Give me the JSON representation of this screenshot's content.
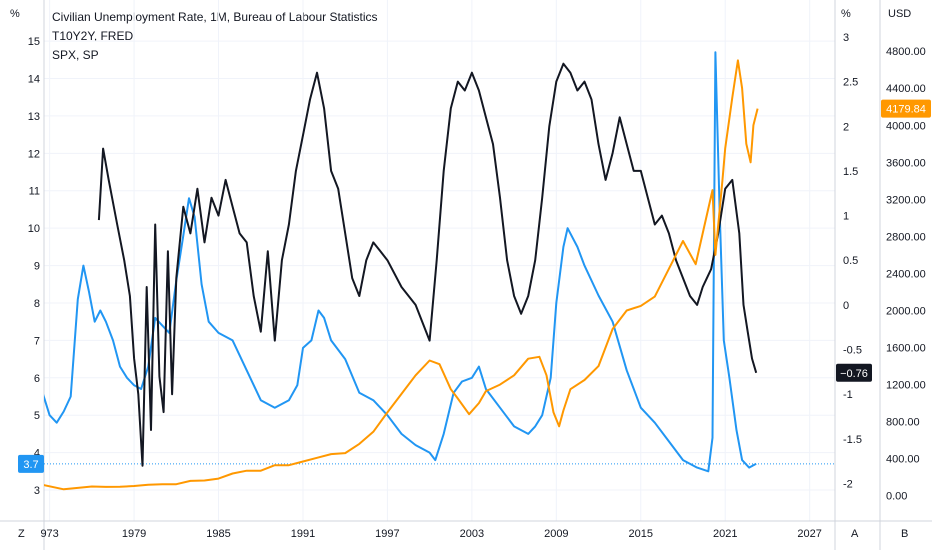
{
  "legend": {
    "series1": "Civilian Unemployment Rate, 1M, Bureau of Labour Statistics",
    "series2": "T10Y2Y, FRED",
    "series3": "SPX, SP"
  },
  "axis_units": {
    "left": "%",
    "middle": "%",
    "right": "USD"
  },
  "corner_buttons": {
    "bottom_left": "Z",
    "bottom_middle": "A",
    "bottom_right": "B"
  },
  "colors": {
    "unemployment": "#2196f3",
    "t10y2y": "#131722",
    "spx": "#ff9800",
    "grid": "#f0f3fa",
    "axis_line": "#d1d4dc"
  },
  "badges": {
    "unemployment_last": "3.7",
    "t10y2y_last": "−0.76",
    "spx_last": "4179.84"
  },
  "chart_data": {
    "type": "line",
    "x_axis": {
      "tick_labels": [
        "973",
        "1979",
        "1985",
        "1991",
        "1997",
        "2003",
        "2009",
        "2015",
        "2021",
        "2027"
      ],
      "range": [
        1972.6,
        2028.8
      ]
    },
    "y_axes": {
      "left": {
        "unit": "%",
        "range": [
          2.6,
          15.35
        ],
        "ticks": [
          3,
          4,
          5,
          6,
          7,
          8,
          9,
          10,
          11,
          12,
          13,
          14,
          15
        ]
      },
      "middle": {
        "unit": "%",
        "range": [
          -2.24,
          3.1
        ],
        "ticks": [
          "-2",
          "-1.5",
          "-1",
          "-0.5",
          "0",
          "0.5",
          "1",
          "1.5",
          "2",
          "2.5",
          "3"
        ]
      },
      "right": {
        "unit": "USD",
        "range": [
          -100,
          5050
        ],
        "ticks": [
          "0.00",
          "400.00",
          "800.00",
          "1200.00",
          "1600.00",
          "2000.00",
          "2400.00",
          "2800.00",
          "3200.00",
          "3600.00",
          "4000.00",
          "4400.00",
          "4800.00"
        ]
      }
    },
    "series": [
      {
        "name": "Civilian Unemployment Rate, 1M, Bureau of Labour Statistics",
        "axis": "left",
        "x": [
          1972.5,
          1973.0,
          1973.5,
          1974.0,
          1974.5,
          1975.0,
          1975.4,
          1975.8,
          1976.2,
          1976.6,
          1977.0,
          1977.5,
          1978.0,
          1978.5,
          1979.0,
          1979.5,
          1980.0,
          1980.5,
          1981.0,
          1981.5,
          1982.0,
          1982.5,
          1982.9,
          1983.3,
          1983.8,
          1984.3,
          1985.0,
          1986.0,
          1987.0,
          1988.0,
          1989.0,
          1990.0,
          1990.6,
          1991.0,
          1991.6,
          1992.1,
          1992.5,
          1993.0,
          1994.0,
          1995.0,
          1996.0,
          1997.0,
          1998.0,
          1999.0,
          2000.0,
          2000.4,
          2001.0,
          2001.7,
          2002.3,
          2003.0,
          2003.5,
          2004.0,
          2005.0,
          2006.0,
          2007.0,
          2007.5,
          2008.0,
          2008.6,
          2009.0,
          2009.5,
          2009.8,
          2010.5,
          2011.0,
          2012.0,
          2013.0,
          2014.0,
          2015.0,
          2016.0,
          2017.0,
          2018.0,
          2019.0,
          2019.8,
          2020.1,
          2020.3,
          2020.6,
          2020.9,
          2021.3,
          2021.8,
          2022.2,
          2022.7,
          2023.2
        ],
        "values": [
          5.6,
          5.0,
          4.8,
          5.1,
          5.5,
          8.1,
          9.0,
          8.3,
          7.5,
          7.8,
          7.5,
          7.0,
          6.3,
          6.0,
          5.8,
          5.7,
          6.3,
          7.6,
          7.4,
          7.2,
          8.6,
          9.8,
          10.8,
          10.3,
          8.5,
          7.5,
          7.2,
          7.0,
          6.2,
          5.4,
          5.2,
          5.4,
          5.8,
          6.8,
          7.0,
          7.8,
          7.6,
          7.0,
          6.5,
          5.6,
          5.4,
          5.0,
          4.5,
          4.2,
          4.0,
          3.8,
          4.5,
          5.6,
          5.9,
          6.0,
          6.3,
          5.7,
          5.2,
          4.7,
          4.5,
          4.7,
          5.0,
          6.0,
          8.0,
          9.5,
          10.0,
          9.5,
          9.0,
          8.2,
          7.5,
          6.2,
          5.2,
          4.8,
          4.3,
          3.8,
          3.6,
          3.5,
          4.4,
          14.7,
          10.5,
          7.0,
          6.0,
          4.6,
          3.8,
          3.6,
          3.7
        ]
      },
      {
        "name": "T10Y2Y, FRED",
        "axis": "middle",
        "x": [
          1976.5,
          1976.8,
          1977.2,
          1977.8,
          1978.3,
          1978.7,
          1979.0,
          1979.3,
          1979.6,
          1979.9,
          1980.2,
          1980.5,
          1980.8,
          1981.1,
          1981.4,
          1981.7,
          1982.0,
          1982.5,
          1983.0,
          1983.5,
          1984.0,
          1984.5,
          1985.0,
          1985.5,
          1986.0,
          1986.5,
          1987.0,
          1987.5,
          1988.0,
          1988.5,
          1989.0,
          1989.5,
          1990.0,
          1990.5,
          1991.0,
          1991.5,
          1992.0,
          1992.5,
          1993.0,
          1993.5,
          1994.0,
          1994.5,
          1995.0,
          1995.5,
          1996.0,
          1996.5,
          1997.0,
          1998.0,
          1999.0,
          2000.0,
          2000.5,
          2001.0,
          2001.5,
          2002.0,
          2002.5,
          2003.0,
          2003.5,
          2004.0,
          2004.5,
          2005.0,
          2005.5,
          2006.0,
          2006.5,
          2007.0,
          2007.5,
          2008.0,
          2008.5,
          2009.0,
          2009.5,
          2010.0,
          2010.5,
          2011.0,
          2011.5,
          2012.0,
          2012.5,
          2013.0,
          2013.5,
          2014.0,
          2014.5,
          2015.0,
          2015.5,
          2016.0,
          2016.5,
          2017.0,
          2017.5,
          2018.0,
          2018.5,
          2019.0,
          2019.4,
          2019.7,
          2020.0,
          2020.5,
          2021.0,
          2021.5,
          2022.0,
          2022.3,
          2022.6,
          2022.9,
          2023.2
        ],
        "values": [
          0.95,
          1.75,
          1.4,
          0.9,
          0.5,
          0.1,
          -0.6,
          -1.0,
          -1.8,
          0.2,
          -1.4,
          0.9,
          -0.8,
          -1.2,
          0.6,
          -1.0,
          0.3,
          1.1,
          0.8,
          1.3,
          0.7,
          1.2,
          1.0,
          1.4,
          1.1,
          0.8,
          0.7,
          0.1,
          -0.3,
          0.6,
          -0.4,
          0.5,
          0.9,
          1.5,
          1.9,
          2.3,
          2.6,
          2.2,
          1.5,
          1.3,
          0.8,
          0.3,
          0.1,
          0.5,
          0.7,
          0.6,
          0.5,
          0.2,
          0.0,
          -0.4,
          0.5,
          1.5,
          2.2,
          2.5,
          2.4,
          2.6,
          2.4,
          2.1,
          1.8,
          1.2,
          0.5,
          0.1,
          -0.1,
          0.1,
          0.5,
          1.2,
          2.0,
          2.5,
          2.7,
          2.6,
          2.4,
          2.5,
          2.3,
          1.8,
          1.4,
          1.7,
          2.1,
          1.8,
          1.5,
          1.5,
          1.2,
          0.9,
          1.0,
          0.8,
          0.5,
          0.3,
          0.1,
          0.0,
          0.2,
          0.3,
          0.4,
          0.8,
          1.3,
          1.4,
          0.8,
          0.0,
          -0.3,
          -0.6,
          -0.76
        ]
      },
      {
        "name": "SPX, SP",
        "axis": "right",
        "x": [
          1972.5,
          1974.0,
          1975.0,
          1976.0,
          1977.0,
          1978.0,
          1979.0,
          1980.0,
          1981.0,
          1982.0,
          1983.0,
          1984.0,
          1985.0,
          1986.0,
          1987.0,
          1988.0,
          1989.0,
          1990.0,
          1991.0,
          1992.0,
          1993.0,
          1994.0,
          1995.0,
          1996.0,
          1997.0,
          1998.0,
          1999.0,
          2000.0,
          2000.7,
          2001.5,
          2002.0,
          2002.8,
          2003.5,
          2004.0,
          2005.0,
          2006.0,
          2007.0,
          2007.8,
          2008.3,
          2008.8,
          2009.2,
          2009.5,
          2010.0,
          2011.0,
          2012.0,
          2013.0,
          2014.0,
          2015.0,
          2016.0,
          2017.0,
          2018.0,
          2018.9,
          2019.5,
          2020.1,
          2020.3,
          2020.8,
          2021.0,
          2021.5,
          2021.9,
          2022.2,
          2022.5,
          2022.8,
          2023.0,
          2023.3
        ],
        "values": [
          118,
          70,
          85,
          100,
          95,
          96,
          105,
          118,
          125,
          125,
          160,
          165,
          185,
          240,
          270,
          270,
          330,
          330,
          370,
          410,
          450,
          460,
          560,
          690,
          900,
          1100,
          1300,
          1460,
          1420,
          1150,
          1050,
          880,
          1000,
          1130,
          1200,
          1300,
          1480,
          1500,
          1300,
          900,
          750,
          920,
          1150,
          1250,
          1400,
          1800,
          2000,
          2050,
          2150,
          2450,
          2750,
          2500,
          2900,
          3300,
          2600,
          3400,
          3750,
          4300,
          4700,
          4400,
          3800,
          3600,
          4000,
          4180
        ]
      }
    ],
    "price_lines": [
      {
        "series": "Civilian Unemployment Rate, 1M, Bureau of Labour Statistics",
        "axis": "left",
        "value": 3.7
      }
    ]
  }
}
